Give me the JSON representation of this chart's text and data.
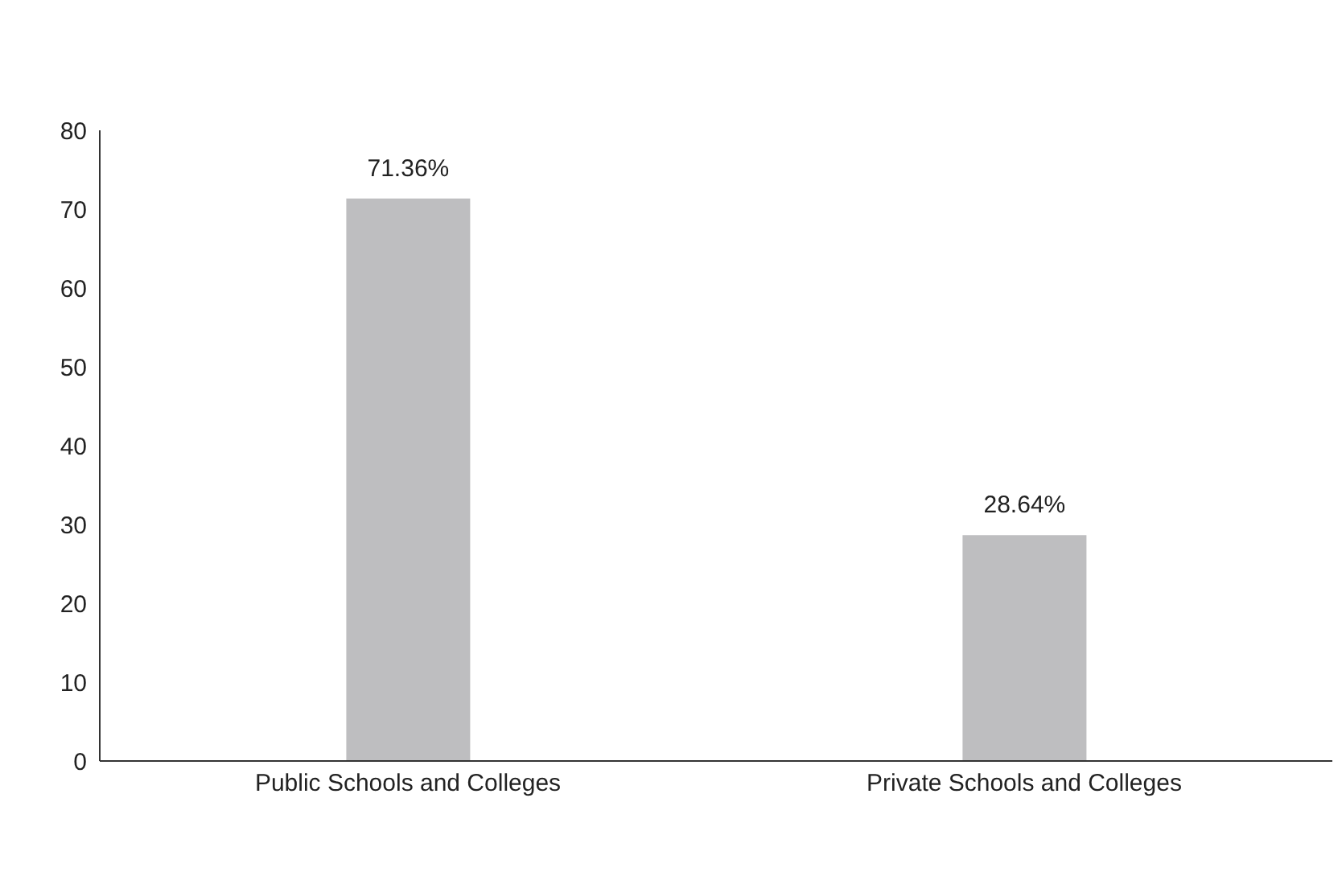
{
  "chart_data": {
    "type": "bar",
    "categories": [
      "Public Schools and Colleges",
      "Private Schools and Colleges"
    ],
    "values": [
      71.36,
      28.64
    ],
    "color": "#bebec0",
    "value_labels": [
      "71.36%",
      "28.64%"
    ],
    "ylim": [
      0,
      80
    ],
    "yticks": [
      0,
      10,
      20,
      30,
      40,
      50,
      60,
      70,
      80
    ],
    "grid": false,
    "legend": false
  }
}
